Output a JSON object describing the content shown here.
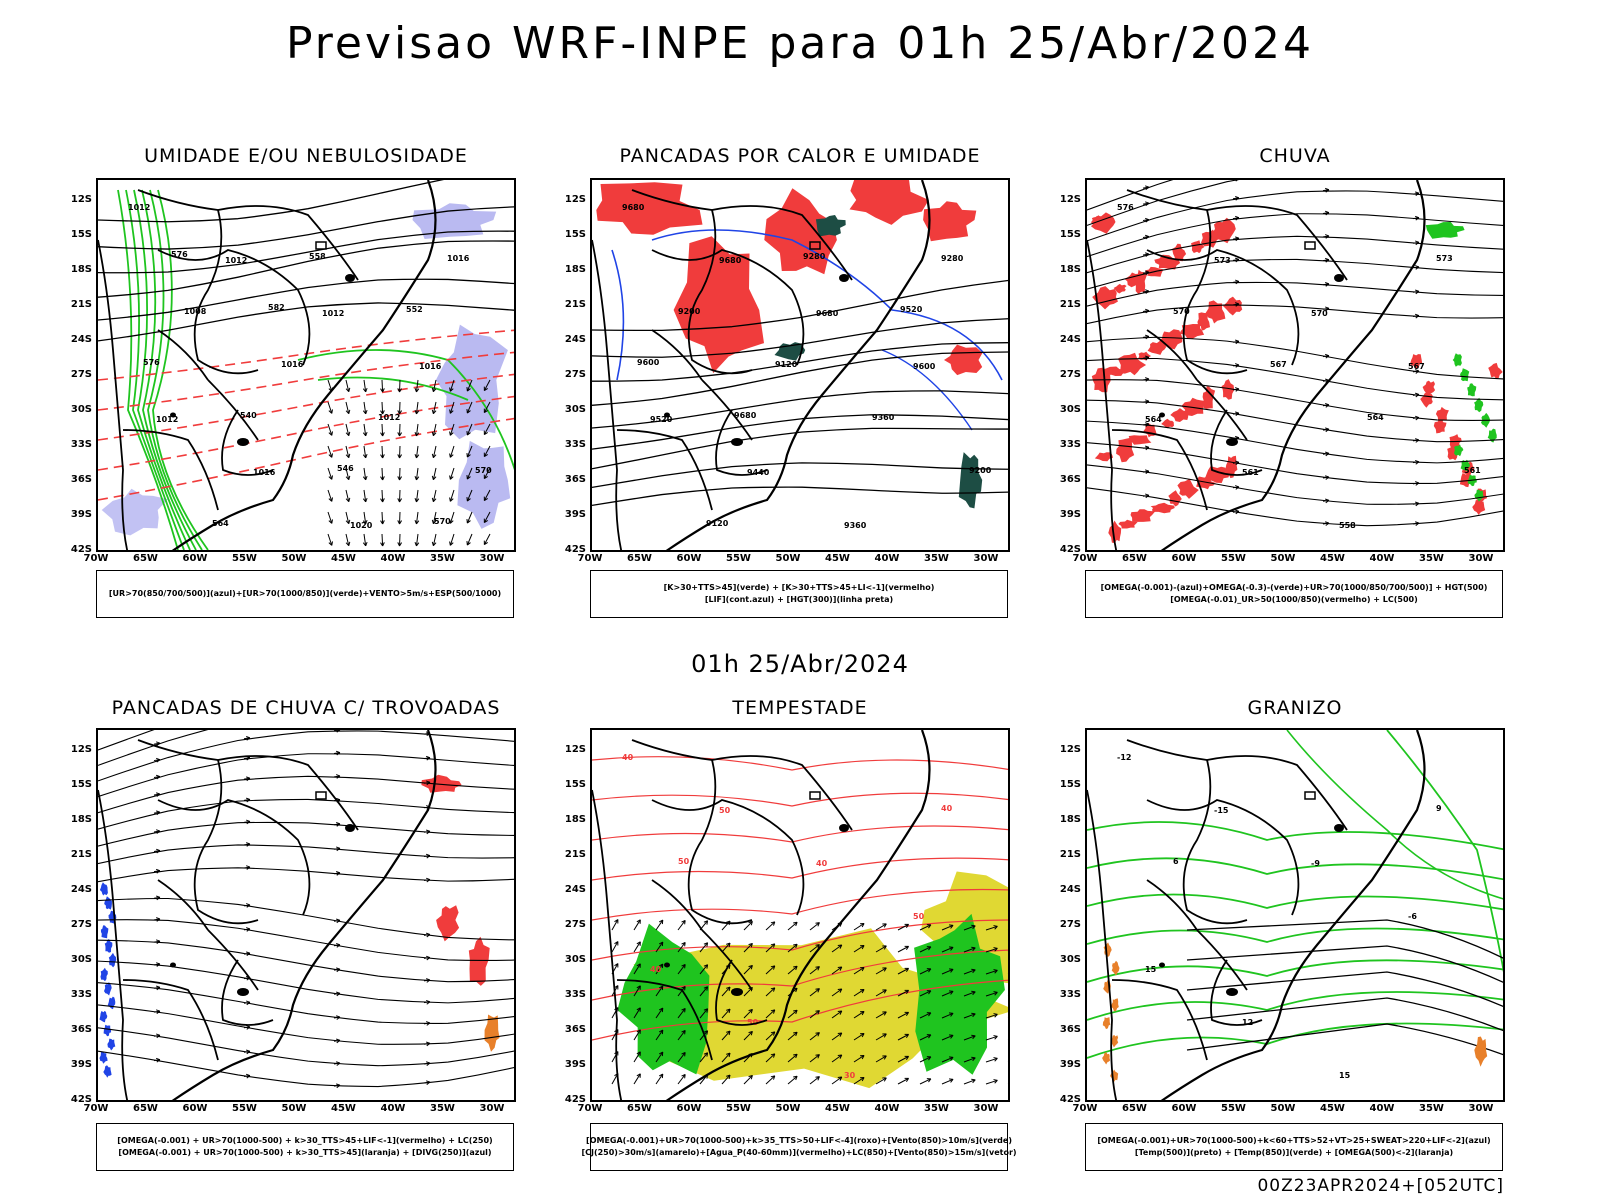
{
  "title": "Previsao WRF-INPE  para 01h 25/Abr/2024",
  "mid_date": "01h 25/Abr/2024",
  "footer": "00Z23APR2024+[052UTC]",
  "axis": {
    "y_labels": [
      "12S",
      "15S",
      "18S",
      "21S",
      "24S",
      "27S",
      "30S",
      "33S",
      "36S",
      "39S",
      "42S"
    ],
    "x_labels": [
      "70W",
      "65W",
      "60W",
      "55W",
      "50W",
      "45W",
      "40W",
      "35W",
      "30W"
    ]
  },
  "colors": {
    "blue_fill": "#b3b3f0",
    "green": "#1fc41f",
    "red": "#f03c3c",
    "dark_teal": "#1d4d44",
    "blue_line": "#2044e6",
    "yellow": "#e0d833",
    "orange": "#e8802a"
  },
  "panels": [
    {
      "title": "UMIDADE E/OU NEBULOSIDADE",
      "legend": [
        "[UR>70(850/700/500)](azul)+[UR>70(1000/850)](verde)+VENTO>5m/s+ESP(500/1000)"
      ],
      "labels": [
        "1012",
        "1012",
        "1012",
        "1016",
        "1012",
        "1016",
        "1020",
        "1016",
        "1008",
        "1016",
        "1012",
        "570",
        "564",
        "558",
        "552",
        "576",
        "540",
        "546",
        "570",
        "576",
        "582"
      ]
    },
    {
      "title": "PANCADAS POR CALOR E UMIDADE",
      "legend": [
        "[K>30+TTS>45](verde) + [K>30+TTS>45+LI<-1](vermelho)",
        "[LIF](cont.azul) + [HGT(300)](linha preta)"
      ],
      "labels": [
        "9680",
        "9680",
        "9680",
        "9600",
        "9520",
        "9440",
        "9360",
        "9280",
        "9200",
        "9120",
        "9360",
        "9200",
        "9120",
        "9280",
        "9520",
        "9600",
        "9680"
      ]
    },
    {
      "title": "CHUVA",
      "legend": [
        "[OMEGA(-0.001)-(azul)+OMEGA(-0.3)-(verde)+UR>70(1000/850/700/500)] + HGT(500)",
        "[OMEGA(-0.01)_UR>50(1000/850)(vermelho) + LC(500)"
      ],
      "labels": [
        "576",
        "573",
        "570",
        "567",
        "564",
        "561",
        "558",
        "573",
        "570",
        "567",
        "564",
        "561"
      ]
    },
    {
      "title": "PANCADAS DE CHUVA C/ TROVOADAS",
      "legend": [
        "[OMEGA(-0.001) + UR>70(1000-500) + k>30_TTS>45+LIF<-1](vermelho) + LC(250)",
        "[OMEGA(-0.001) + UR>70(1000-500) + k>30_TTS>45](laranja) + [DIVG(250)](azul)"
      ],
      "labels": []
    },
    {
      "title": "TEMPESTADE",
      "legend": [
        "[OMEGA(-0.001)+UR>70(1000-500)+k>35_TTS>50+LIF<-4](roxo)+[Vento(850)>10m/s](verde)",
        "[CJ(250)>30m/s](amarelo)+[Agua_P(40-60mm)](vermelho)+LC(850)+[Vento(850)>15m/s](vetor)"
      ],
      "labels": [
        "40",
        "50",
        "40",
        "50",
        "40",
        "50",
        "30",
        "40",
        "50"
      ]
    },
    {
      "title": "GRANIZO",
      "legend": [
        "[OMEGA(-0.001)+UR>70(1000-500)+k<60+TTS>52+VT>25+SWEAT>220+LIF<-2](azul)",
        "[Temp(500)](preto) + [Temp(850)](verde) + [OMEGA(500)<-2](laranja)"
      ],
      "labels": [
        "-12",
        "-15",
        "-9",
        "-6",
        "15",
        "12",
        "15",
        "9",
        "6"
      ]
    }
  ]
}
